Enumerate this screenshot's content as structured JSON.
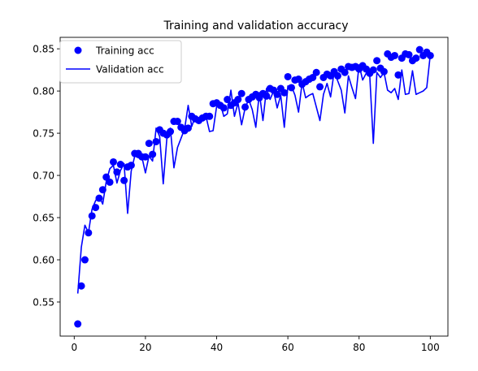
{
  "chart_data": {
    "type": "line",
    "title": "Training and validation accuracy",
    "xlabel": "",
    "ylabel": "",
    "xlim": [
      -3.95,
      104.95
    ],
    "ylim": [
      0.5096,
      0.8636
    ],
    "xticks": [
      0,
      20,
      40,
      60,
      80,
      100
    ],
    "yticks": [
      0.55,
      0.6,
      0.65,
      0.7,
      0.75,
      0.8,
      0.85
    ],
    "ytick_labels": [
      "0.55",
      "0.60",
      "0.65",
      "0.70",
      "0.75",
      "0.80",
      "0.85"
    ],
    "legend_position": "top-left",
    "grid": false,
    "series": [
      {
        "name": "Training acc",
        "style": "markers",
        "color": "#0000ff",
        "x": [
          1,
          2,
          3,
          4,
          5,
          6,
          7,
          8,
          9,
          10,
          11,
          12,
          13,
          14,
          15,
          16,
          17,
          18,
          19,
          20,
          21,
          22,
          23,
          24,
          25,
          26,
          27,
          28,
          29,
          30,
          31,
          32,
          33,
          34,
          35,
          36,
          37,
          38,
          39,
          40,
          41,
          42,
          43,
          44,
          45,
          46,
          47,
          48,
          49,
          50,
          51,
          52,
          53,
          54,
          55,
          56,
          57,
          58,
          59,
          60,
          61,
          62,
          63,
          64,
          65,
          66,
          67,
          68,
          69,
          70,
          71,
          72,
          73,
          74,
          75,
          76,
          77,
          78,
          79,
          80,
          81,
          82,
          83,
          84,
          85,
          86,
          87,
          88,
          89,
          90,
          91,
          92,
          93,
          94,
          95,
          96,
          97,
          98,
          99,
          100
        ],
        "y": [
          0.524,
          0.569,
          0.6,
          0.632,
          0.652,
          0.662,
          0.673,
          0.683,
          0.698,
          0.692,
          0.716,
          0.704,
          0.713,
          0.694,
          0.71,
          0.712,
          0.726,
          0.726,
          0.722,
          0.722,
          0.738,
          0.725,
          0.74,
          0.754,
          0.75,
          0.748,
          0.752,
          0.764,
          0.764,
          0.757,
          0.753,
          0.756,
          0.77,
          0.767,
          0.765,
          0.768,
          0.77,
          0.77,
          0.785,
          0.786,
          0.783,
          0.78,
          0.79,
          0.783,
          0.786,
          0.79,
          0.797,
          0.781,
          0.79,
          0.793,
          0.796,
          0.792,
          0.797,
          0.794,
          0.803,
          0.801,
          0.796,
          0.803,
          0.798,
          0.817,
          0.804,
          0.813,
          0.814,
          0.808,
          0.811,
          0.814,
          0.816,
          0.822,
          0.805,
          0.816,
          0.82,
          0.818,
          0.823,
          0.818,
          0.826,
          0.822,
          0.829,
          0.828,
          0.829,
          0.826,
          0.83,
          0.826,
          0.821,
          0.825,
          0.836,
          0.827,
          0.823,
          0.844,
          0.84,
          0.842,
          0.819,
          0.839,
          0.844,
          0.843,
          0.836,
          0.839,
          0.849,
          0.842,
          0.846,
          0.842
        ]
      },
      {
        "name": "Validation acc",
        "style": "line",
        "color": "#0000ff",
        "x": [
          1,
          2,
          3,
          4,
          5,
          6,
          7,
          8,
          9,
          10,
          11,
          12,
          13,
          14,
          15,
          16,
          17,
          18,
          19,
          20,
          21,
          22,
          23,
          24,
          25,
          26,
          27,
          28,
          29,
          30,
          31,
          32,
          33,
          34,
          35,
          36,
          37,
          38,
          39,
          40,
          41,
          42,
          43,
          44,
          45,
          46,
          47,
          48,
          49,
          50,
          51,
          52,
          53,
          54,
          55,
          56,
          57,
          58,
          59,
          60,
          61,
          62,
          63,
          64,
          65,
          66,
          67,
          68,
          69,
          70,
          71,
          72,
          73,
          74,
          75,
          76,
          77,
          78,
          79,
          80,
          81,
          82,
          83,
          84,
          85,
          86,
          87,
          88,
          89,
          90,
          91,
          92,
          93,
          94,
          95,
          96,
          97,
          98,
          99,
          100
        ],
        "y": [
          0.56,
          0.615,
          0.641,
          0.632,
          0.66,
          0.67,
          0.676,
          0.666,
          0.693,
          0.708,
          0.712,
          0.691,
          0.706,
          0.714,
          0.655,
          0.705,
          0.723,
          0.721,
          0.722,
          0.703,
          0.723,
          0.717,
          0.756,
          0.746,
          0.69,
          0.743,
          0.756,
          0.709,
          0.733,
          0.744,
          0.755,
          0.783,
          0.758,
          0.77,
          0.762,
          0.77,
          0.77,
          0.752,
          0.753,
          0.782,
          0.786,
          0.77,
          0.773,
          0.801,
          0.77,
          0.786,
          0.76,
          0.78,
          0.79,
          0.778,
          0.757,
          0.798,
          0.765,
          0.803,
          0.79,
          0.8,
          0.78,
          0.795,
          0.757,
          0.806,
          0.806,
          0.795,
          0.775,
          0.81,
          0.792,
          0.795,
          0.797,
          0.781,
          0.765,
          0.796,
          0.809,
          0.793,
          0.823,
          0.812,
          0.801,
          0.774,
          0.818,
          0.804,
          0.791,
          0.831,
          0.813,
          0.821,
          0.818,
          0.738,
          0.822,
          0.816,
          0.822,
          0.801,
          0.798,
          0.803,
          0.79,
          0.825,
          0.796,
          0.797,
          0.824,
          0.796,
          0.798,
          0.8,
          0.804,
          0.843
        ]
      }
    ]
  }
}
